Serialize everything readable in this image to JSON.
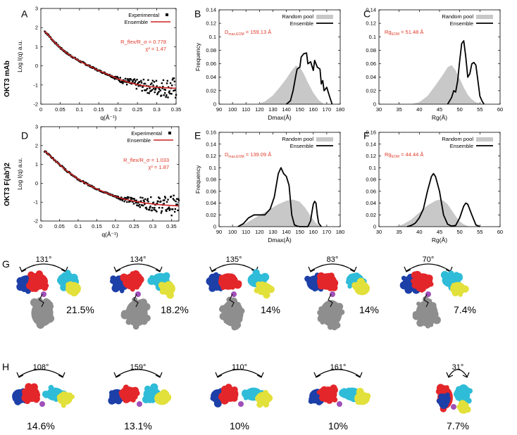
{
  "figure": {
    "row_labels": {
      "a": "OKT3 mAb",
      "d": "OKT3 F(ab')2"
    },
    "colors": {
      "experimental": "#000000",
      "ensemble_fit": "#cc2222",
      "random_pool": "#c8c8c8",
      "annotation": "#e03a2a",
      "domain_red": "#e3262a",
      "domain_blue": "#1c3fa8",
      "domain_cyan": "#2fbcd8",
      "domain_yellow": "#e2e03a",
      "hinge": "#a04fb8",
      "fc_gray": "#8e8e8e"
    }
  },
  "chart_data": [
    {
      "id": "A",
      "type": "scatter",
      "panel_label": "A",
      "xlabel": "q(Å⁻¹)",
      "ylabel": "Log I(q) a.u.",
      "xlim": [
        0,
        0.35
      ],
      "ylim": [
        -2,
        3
      ],
      "xticks": [
        "0",
        "0.05",
        "0.1",
        "0.15",
        "0.2",
        "0.25",
        "0.3",
        "0.35"
      ],
      "yticks": [
        "-2",
        "-1",
        "0",
        "1",
        "2",
        "3"
      ],
      "legend": [
        "Experimental",
        "Ensemble"
      ],
      "annotation_1": "R_flex/R_σ = 0.778",
      "annotation_2": "χ² = 1.47",
      "fit_curve": {
        "x": [
          0.01,
          0.02,
          0.03,
          0.05,
          0.07,
          0.1,
          0.12,
          0.15,
          0.18,
          0.2,
          0.22,
          0.25,
          0.28,
          0.3,
          0.33,
          0.35
        ],
        "y": [
          1.8,
          1.6,
          1.35,
          0.95,
          0.62,
          0.25,
          0.05,
          -0.25,
          -0.5,
          -0.68,
          -0.82,
          -0.98,
          -1.08,
          -1.12,
          -1.15,
          -1.17
        ]
      },
      "noise_after_q": 0.18
    },
    {
      "id": "B",
      "type": "area",
      "panel_label": "B",
      "xlabel": "Dmax(Å)",
      "ylabel": "Frequency",
      "xlim": [
        90,
        180
      ],
      "ylim": [
        0,
        0.14
      ],
      "xticks": [
        "90",
        "100",
        "110",
        "120",
        "130",
        "140",
        "150",
        "160",
        "170",
        "180"
      ],
      "yticks": [
        "0",
        "0.02",
        "0.04",
        "0.06",
        "0.08",
        "0.1",
        "0.12",
        "0.14"
      ],
      "legend": [
        "Random pool",
        "Ensemble"
      ],
      "annotation_main": "D",
      "annotation_sub": "max,EOM",
      "annotation_value": " = 159.13 Å",
      "series": [
        {
          "name": "Random pool",
          "x": [
            118,
            124,
            130,
            135,
            140,
            144,
            147,
            150,
            153,
            156,
            160,
            164,
            168
          ],
          "y": [
            0,
            0.004,
            0.013,
            0.025,
            0.038,
            0.05,
            0.057,
            0.055,
            0.045,
            0.032,
            0.017,
            0.006,
            0
          ]
        },
        {
          "name": "Ensemble",
          "x": [
            140,
            143,
            145,
            147,
            148,
            150,
            151,
            153,
            155,
            156,
            158,
            160,
            161,
            163,
            165,
            166,
            167,
            168,
            170,
            172,
            174
          ],
          "y": [
            0,
            0.005,
            0.02,
            0.042,
            0.052,
            0.055,
            0.07,
            0.075,
            0.076,
            0.06,
            0.063,
            0.05,
            0.065,
            0.055,
            0.052,
            0.03,
            0.035,
            0.02,
            0.025,
            0.012,
            0
          ]
        }
      ]
    },
    {
      "id": "C",
      "type": "area",
      "panel_label": "C",
      "xlabel": "Rg(Å)",
      "ylabel": "",
      "xlim": [
        30,
        60
      ],
      "ylim": [
        0,
        0.14
      ],
      "xticks": [
        "30",
        "35",
        "40",
        "45",
        "50",
        "55",
        "60"
      ],
      "yticks": [
        "0",
        "0.02",
        "0.04",
        "0.06",
        "0.08",
        "0.1",
        "0.12",
        "0.14"
      ],
      "legend": [
        "Random pool",
        "Ensemble"
      ],
      "annotation_main": "Rg",
      "annotation_sub": "EOM",
      "annotation_value": " = 51.48 Å",
      "series": [
        {
          "name": "Random pool",
          "x": [
            38,
            40,
            42,
            44,
            46,
            47,
            48,
            49,
            50,
            51,
            52,
            53,
            54,
            55,
            56
          ],
          "y": [
            0,
            0.003,
            0.012,
            0.028,
            0.045,
            0.055,
            0.058,
            0.05,
            0.038,
            0.025,
            0.014,
            0.007,
            0.003,
            0.001,
            0
          ]
        },
        {
          "name": "Ensemble",
          "x": [
            47,
            48,
            48.5,
            49,
            49.5,
            50,
            50.5,
            51,
            51.5,
            52,
            52.5,
            53,
            53.5,
            54,
            54.5,
            55,
            55.5,
            56
          ],
          "y": [
            0,
            0.01,
            0.02,
            0.018,
            0.035,
            0.065,
            0.09,
            0.094,
            0.07,
            0.04,
            0.045,
            0.06,
            0.062,
            0.058,
            0.035,
            0.012,
            0.005,
            0
          ]
        }
      ]
    },
    {
      "id": "D",
      "type": "scatter",
      "panel_label": "D",
      "xlabel": "q(Å⁻¹)",
      "ylabel": "Log I(q) a.u.",
      "xlim": [
        0,
        0.37
      ],
      "ylim": [
        -2,
        3
      ],
      "xticks": [
        "0",
        "0.05",
        "0.1",
        "0.15",
        "0.2",
        "0.25",
        "0.3",
        "0.35"
      ],
      "yticks": [
        "-2",
        "-1",
        "0",
        "1",
        "2",
        "3"
      ],
      "legend": [
        "Experimental",
        "Ensemble"
      ],
      "annotation_1": "R_flex/R_σ = 1.033",
      "annotation_2": "χ² = 1.87",
      "fit_curve": {
        "x": [
          0.01,
          0.02,
          0.03,
          0.05,
          0.07,
          0.1,
          0.12,
          0.15,
          0.18,
          0.2,
          0.22,
          0.25,
          0.28,
          0.3,
          0.33,
          0.37
        ],
        "y": [
          1.7,
          1.55,
          1.35,
          1.0,
          0.65,
          0.22,
          0.0,
          -0.3,
          -0.55,
          -0.7,
          -0.82,
          -0.95,
          -1.05,
          -1.1,
          -1.15,
          -1.2
        ]
      },
      "noise_after_q": 0.2
    },
    {
      "id": "E",
      "type": "area",
      "panel_label": "E",
      "xlabel": "Dmax(Å)",
      "ylabel": "Frequency",
      "xlim": [
        90,
        180
      ],
      "ylim": [
        0,
        0.16
      ],
      "xticks": [
        "90",
        "100",
        "110",
        "120",
        "130",
        "140",
        "150",
        "160",
        "170",
        "180"
      ],
      "yticks": [
        "0",
        "0.02",
        "0.04",
        "0.06",
        "0.08",
        "0.1",
        "0.12",
        "0.14",
        "0.16"
      ],
      "legend": [
        "Random pool",
        "Ensemble"
      ],
      "annotation_main": "D",
      "annotation_sub": "max,EOM",
      "annotation_value": " = 139.09 Å",
      "series": [
        {
          "name": "Random pool",
          "x": [
            104,
            110,
            116,
            122,
            128,
            134,
            140,
            145,
            150,
            154,
            158,
            162,
            166
          ],
          "y": [
            0,
            0.006,
            0.014,
            0.022,
            0.03,
            0.038,
            0.044,
            0.046,
            0.042,
            0.032,
            0.018,
            0.006,
            0
          ]
        },
        {
          "name": "Ensemble",
          "x": [
            104,
            108,
            112,
            116,
            120,
            124,
            128,
            131,
            134,
            136,
            138,
            140,
            142,
            144,
            146,
            148,
            150,
            152,
            154,
            156,
            158,
            159,
            160,
            161,
            162,
            163,
            164,
            166
          ],
          "y": [
            0,
            0.005,
            0.015,
            0.02,
            0.02,
            0.02,
            0.03,
            0.05,
            0.09,
            0.1,
            0.09,
            0.085,
            0.07,
            0.02,
            0.003,
            0.001,
            0,
            0,
            0,
            0,
            0.01,
            0.025,
            0.038,
            0.043,
            0.04,
            0.02,
            0.006,
            0
          ]
        }
      ]
    },
    {
      "id": "F",
      "type": "area",
      "panel_label": "F",
      "xlabel": "Rg(Å)",
      "ylabel": "",
      "xlim": [
        30,
        60
      ],
      "ylim": [
        0,
        0.16
      ],
      "xticks": [
        "30",
        "35",
        "40",
        "45",
        "50",
        "55",
        "60"
      ],
      "yticks": [
        "0",
        "0.02",
        "0.04",
        "0.06",
        "0.08",
        "0.1",
        "0.12",
        "0.14",
        "0.16"
      ],
      "legend": [
        "Random pool",
        "Ensemble"
      ],
      "annotation_main": "Rg",
      "annotation_sub": "EOM",
      "annotation_value": " = 44.44 Å",
      "series": [
        {
          "name": "Random pool",
          "x": [
            34,
            36,
            38,
            40,
            42,
            44,
            45,
            46,
            47,
            48,
            49,
            50,
            51,
            52,
            53
          ],
          "y": [
            0,
            0.004,
            0.012,
            0.024,
            0.036,
            0.044,
            0.046,
            0.044,
            0.038,
            0.028,
            0.018,
            0.009,
            0.004,
            0.001,
            0
          ]
        },
        {
          "name": "Ensemble",
          "x": [
            37,
            38,
            39,
            40,
            41,
            42,
            43,
            43.5,
            44,
            45,
            46,
            47,
            48,
            49,
            50,
            51,
            51.5,
            52,
            53,
            54,
            55
          ],
          "y": [
            0,
            0.002,
            0.006,
            0.015,
            0.03,
            0.06,
            0.085,
            0.09,
            0.085,
            0.06,
            0.02,
            0.004,
            0.001,
            0.002,
            0.015,
            0.035,
            0.04,
            0.038,
            0.02,
            0.003,
            0
          ]
        }
      ]
    }
  ],
  "structures_g": {
    "panel_label": "G",
    "items": [
      {
        "angle": "131°",
        "percent": "21.5%",
        "fc": true
      },
      {
        "angle": "134°",
        "percent": "18.2%",
        "fc": true
      },
      {
        "angle": "135°",
        "percent": "14%",
        "fc": true
      },
      {
        "angle": "83°",
        "percent": "14%",
        "fc": true
      },
      {
        "angle": "70°",
        "percent": "7.4%",
        "fc": true
      }
    ]
  },
  "structures_h": {
    "panel_label": "H",
    "items": [
      {
        "angle": "108°",
        "percent": "14.6%"
      },
      {
        "angle": "159°",
        "percent": "13.1%"
      },
      {
        "angle": "110°",
        "percent": "10%"
      },
      {
        "angle": "161°",
        "percent": "10%"
      },
      {
        "angle": "31°",
        "percent": "7.7%"
      }
    ]
  }
}
